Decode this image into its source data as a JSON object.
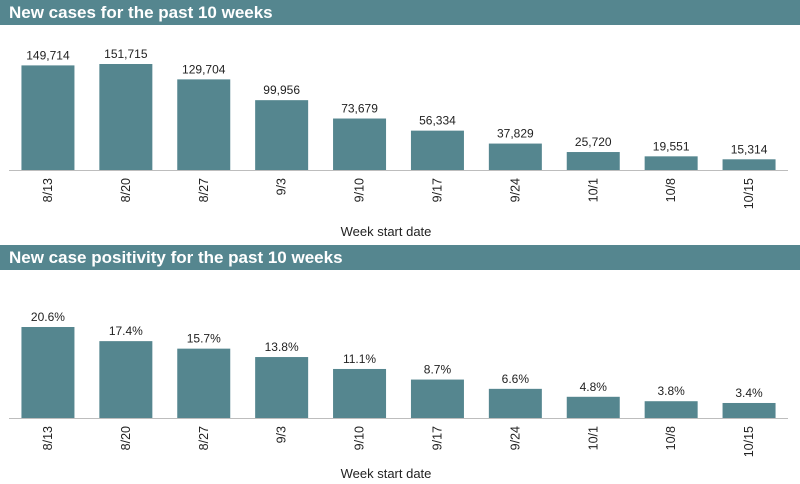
{
  "chart_data": [
    {
      "type": "bar",
      "title": "New cases for the past 10 weeks",
      "xlabel": "Week start date",
      "ylabel": "",
      "categories": [
        "8/13",
        "8/20",
        "8/27",
        "9/3",
        "9/10",
        "9/17",
        "9/24",
        "10/1",
        "10/8",
        "10/15"
      ],
      "values": [
        149714,
        151715,
        129704,
        99956,
        73679,
        56334,
        37829,
        25720,
        19551,
        15314
      ],
      "value_labels": [
        "149,714",
        "151,715",
        "129,704",
        "99,956",
        "73,679",
        "56,334",
        "37,829",
        "25,720",
        "19,551",
        "15,314"
      ],
      "ylim": [
        0,
        151715
      ],
      "grid": false,
      "bar_color": "#55868f"
    },
    {
      "type": "bar",
      "title": "New case positivity for the past 10 weeks",
      "xlabel": "Week start date",
      "ylabel": "",
      "categories": [
        "8/13",
        "8/20",
        "8/27",
        "9/3",
        "9/10",
        "9/17",
        "9/24",
        "10/1",
        "10/8",
        "10/15"
      ],
      "values": [
        20.6,
        17.4,
        15.7,
        13.8,
        11.1,
        8.7,
        6.6,
        4.8,
        3.8,
        3.4
      ],
      "value_labels": [
        "20.6%",
        "17.4%",
        "15.7%",
        "13.8%",
        "11.1%",
        "8.7%",
        "6.6%",
        "4.8%",
        "3.8%",
        "3.4%"
      ],
      "ylim": [
        0,
        20.6
      ],
      "grid": false,
      "bar_color": "#55868f"
    }
  ]
}
